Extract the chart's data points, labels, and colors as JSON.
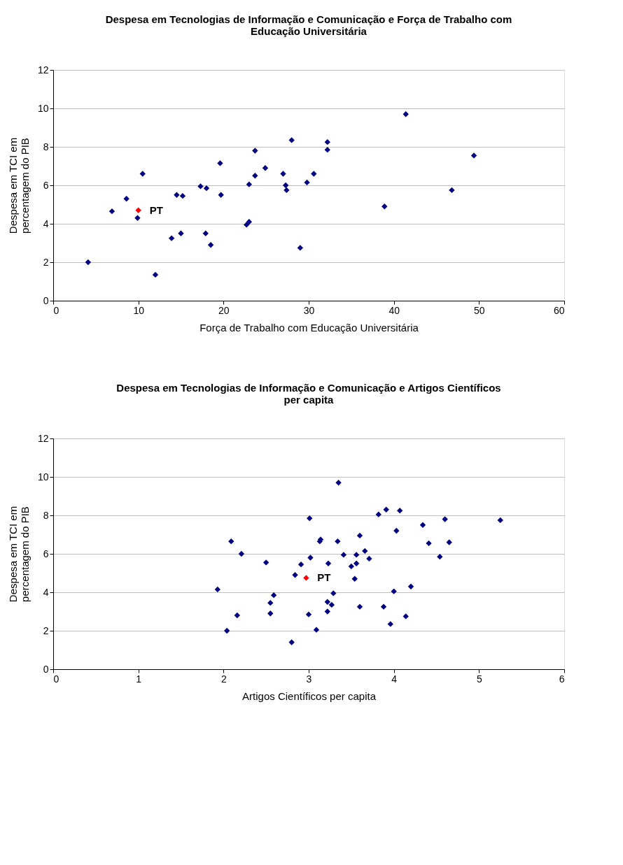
{
  "chart_data": [
    {
      "type": "scatter",
      "title": "Despesa em Tecnologias de Informação e Comunicação e Força de Trabalho com Educação Universitária",
      "xlabel": "Força de Trabalho com Educação Universitária",
      "ylabel": "Despesa em TCI em percentagem do PIB",
      "series": [
        {
          "color": "#000080",
          "x": [
            4.1,
            6.9,
            8.6,
            9.9,
            10.5,
            12.0,
            13.9,
            15.0,
            14.5,
            15.2,
            17.3,
            18.0,
            17.9,
            18.5,
            19.6,
            19.7,
            22.7,
            23.0,
            23.0,
            23.7,
            23.7,
            24.9,
            27.0,
            27.3,
            27.4,
            28.0,
            29.0,
            29.8,
            30.6,
            32.2,
            32.2,
            38.9,
            41.4,
            46.8,
            49.4
          ],
          "values": [
            2.0,
            4.65,
            5.3,
            4.3,
            6.6,
            1.35,
            3.25,
            3.5,
            5.5,
            5.45,
            5.95,
            5.85,
            3.5,
            2.9,
            7.15,
            5.5,
            3.95,
            4.1,
            6.05,
            6.5,
            7.8,
            6.9,
            6.6,
            6.0,
            5.75,
            8.35,
            2.75,
            6.15,
            6.6,
            8.25,
            7.85,
            4.9,
            9.7,
            5.75,
            7.55
          ]
        },
        {
          "color": "#ff0000",
          "x": [
            10.0
          ],
          "values": [
            4.7
          ]
        }
      ],
      "annotations": [
        {
          "text": "PT",
          "x": 10.0,
          "y": 4.7
        }
      ],
      "xlim": [
        0,
        60
      ],
      "xticks": [
        0,
        10,
        20,
        30,
        40,
        50,
        60
      ],
      "ylim": [
        0,
        12
      ],
      "yticks": [
        0,
        2,
        4,
        6,
        8,
        10,
        12
      ],
      "grid": "y",
      "marker": "diamond"
    },
    {
      "type": "scatter",
      "title": "Despesa em Tecnologias de Informação e Comunicação e Artigos Científicos per capita",
      "xlabel": "Artigos Científicos per capita",
      "ylabel": "Despesa em TCI em percentagem do PIB",
      "series": [
        {
          "color": "#000080",
          "x": [
            3.01,
            2.09,
            2.21,
            2.5,
            2.91,
            2.84,
            3.02,
            1.93,
            2.59,
            2.55,
            2.16,
            2.55,
            3.0,
            2.04,
            2.8,
            3.35,
            3.09,
            3.82,
            3.91,
            4.07,
            4.6,
            5.25,
            4.34,
            4.03,
            3.6,
            3.14,
            3.13,
            3.34,
            4.41,
            4.65,
            3.66,
            3.41,
            3.56,
            3.71,
            4.54,
            3.23,
            3.56,
            3.5,
            3.54,
            4.2,
            4.0,
            3.29,
            3.22,
            3.27,
            3.22,
            3.6,
            3.88,
            4.14,
            3.96
          ],
          "values": [
            7.85,
            6.65,
            6.0,
            5.55,
            5.45,
            4.9,
            5.8,
            4.15,
            3.85,
            3.45,
            2.8,
            2.9,
            2.85,
            2.0,
            1.4,
            9.7,
            2.05,
            8.05,
            8.3,
            8.25,
            7.8,
            7.75,
            7.5,
            7.2,
            6.95,
            6.75,
            6.65,
            6.65,
            6.55,
            6.6,
            6.15,
            5.95,
            5.95,
            5.75,
            5.85,
            5.5,
            5.5,
            5.35,
            4.7,
            4.3,
            4.05,
            3.95,
            3.5,
            3.35,
            3.0,
            3.25,
            3.25,
            2.75,
            2.35
          ]
        },
        {
          "color": "#ff0000",
          "x": [
            2.97
          ],
          "values": [
            4.75
          ]
        }
      ],
      "annotations": [
        {
          "text": "PT",
          "x": 2.97,
          "y": 4.75
        }
      ],
      "xlim": [
        0,
        6
      ],
      "xticks": [
        0,
        1,
        2,
        3,
        4,
        5,
        6
      ],
      "ylim": [
        0,
        12
      ],
      "yticks": [
        0,
        2,
        4,
        6,
        8,
        10,
        12
      ],
      "grid": "y",
      "marker": "diamond"
    }
  ]
}
